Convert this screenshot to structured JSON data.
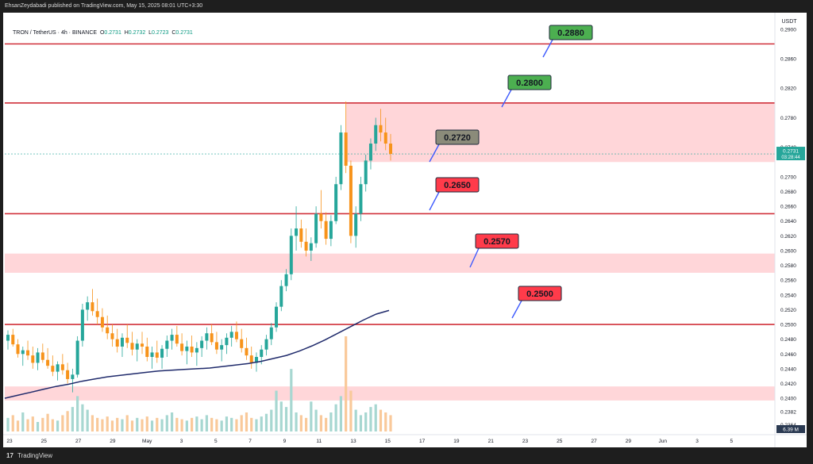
{
  "header": {
    "publisher_text": "EhsanZeydabadi published on TradingView.com, May 15, 2025 08:01 UTC+3:30"
  },
  "legend": {
    "symbol": "TRON / TetherUS · 4h · BINANCE",
    "open_label": "O",
    "open": "0.2731",
    "high_label": "H",
    "high": "0.2732",
    "low_label": "L",
    "low": "0.2723",
    "close_label": "C",
    "close": "0.2731"
  },
  "footer": {
    "brand": "TradingView",
    "logo": "17"
  },
  "colors": {
    "up": "#26a69a",
    "down": "#f7931a",
    "level": "#d0303a",
    "zone": "#ffd6d9",
    "ma": "#1f2a6b",
    "label_green": "#4caf50",
    "label_red": "#ff3b4a",
    "label_gray": "#8b8b7a",
    "price_tag": "#26a69a",
    "volume_tag": "#2b3a52"
  },
  "chart_data": {
    "type": "candlestick",
    "symbol": "TRON / TetherUS",
    "interval": "4h",
    "exchange": "BINANCE",
    "y_unit_label": "USDT",
    "ylim": [
      0.2355,
      0.2918
    ],
    "y_ticks": [
      "0.2900",
      "0.2860",
      "0.2820",
      "0.2780",
      "0.2740",
      "0.2700",
      "0.2680",
      "0.2660",
      "0.2640",
      "0.2620",
      "0.2600",
      "0.2580",
      "0.2560",
      "0.2540",
      "0.2520",
      "0.2500",
      "0.2480",
      "0.2460",
      "0.2440",
      "0.2420",
      "0.2400",
      "0.2382",
      "0.2364"
    ],
    "x_ticks": [
      "23",
      "25",
      "27",
      "29",
      "May",
      "3",
      "5",
      "7",
      "9",
      "11",
      "13",
      "15",
      "17",
      "19",
      "21",
      "23",
      "25",
      "27",
      "29",
      "Jun",
      "3",
      "5"
    ],
    "current_price": "0.2731",
    "countdown": "03:28:44",
    "volume_tag": "6.39 M",
    "levels": [
      {
        "price": 0.288,
        "label": "0.2880",
        "style": "green"
      },
      {
        "price": 0.28,
        "label": "0.2800",
        "style": "green"
      },
      {
        "price": 0.265,
        "label": "0.2650",
        "style": "red"
      },
      {
        "price": 0.25,
        "label": "0.2500",
        "style": "red"
      }
    ],
    "zones": [
      {
        "from": 0.272,
        "to": 0.28,
        "label": "0.2720",
        "style": "gray"
      },
      {
        "from": 0.257,
        "to": 0.2596,
        "label": "0.2570",
        "style": "red"
      },
      {
        "from": 0.2397,
        "to": 0.2416,
        "label": "",
        "style": "none"
      }
    ],
    "candles": [
      [
        0.2478,
        0.2492,
        0.2466,
        0.2486
      ],
      [
        0.2486,
        0.2494,
        0.247,
        0.2473
      ],
      [
        0.2473,
        0.248,
        0.2455,
        0.246
      ],
      [
        0.246,
        0.247,
        0.2444,
        0.2465
      ],
      [
        0.2465,
        0.2478,
        0.2452,
        0.2458
      ],
      [
        0.2458,
        0.247,
        0.244,
        0.2448
      ],
      [
        0.2448,
        0.2468,
        0.2438,
        0.2462
      ],
      [
        0.2462,
        0.2474,
        0.2448,
        0.2452
      ],
      [
        0.2452,
        0.2468,
        0.244,
        0.2444
      ],
      [
        0.2444,
        0.2458,
        0.243,
        0.2436
      ],
      [
        0.2436,
        0.245,
        0.2424,
        0.2446
      ],
      [
        0.2446,
        0.246,
        0.2432,
        0.2438
      ],
      [
        0.2438,
        0.2448,
        0.242,
        0.2426
      ],
      [
        0.2426,
        0.244,
        0.2408,
        0.2432
      ],
      [
        0.2432,
        0.2484,
        0.2428,
        0.2478
      ],
      [
        0.2478,
        0.2528,
        0.247,
        0.252
      ],
      [
        0.252,
        0.2538,
        0.2505,
        0.253
      ],
      [
        0.253,
        0.2548,
        0.2512,
        0.2518
      ],
      [
        0.2518,
        0.2535,
        0.25,
        0.251
      ],
      [
        0.251,
        0.2522,
        0.249,
        0.2496
      ],
      [
        0.2496,
        0.2512,
        0.248,
        0.2488
      ],
      [
        0.2488,
        0.25,
        0.247,
        0.248
      ],
      [
        0.248,
        0.2494,
        0.2462,
        0.247
      ],
      [
        0.247,
        0.2488,
        0.2456,
        0.2482
      ],
      [
        0.2482,
        0.25,
        0.2468,
        0.2475
      ],
      [
        0.2475,
        0.249,
        0.2458,
        0.2466
      ],
      [
        0.2466,
        0.248,
        0.245,
        0.2474
      ],
      [
        0.2474,
        0.249,
        0.246,
        0.247
      ],
      [
        0.247,
        0.2482,
        0.245,
        0.2456
      ],
      [
        0.2456,
        0.247,
        0.244,
        0.2462
      ],
      [
        0.2462,
        0.2478,
        0.2448,
        0.2455
      ],
      [
        0.2455,
        0.2472,
        0.244,
        0.2467
      ],
      [
        0.2467,
        0.2485,
        0.2456,
        0.2478
      ],
      [
        0.2478,
        0.2494,
        0.2466,
        0.2486
      ],
      [
        0.2486,
        0.2498,
        0.247,
        0.2474
      ],
      [
        0.2474,
        0.2488,
        0.2458,
        0.2464
      ],
      [
        0.2464,
        0.2478,
        0.2446,
        0.247
      ],
      [
        0.247,
        0.2485,
        0.2456,
        0.2462
      ],
      [
        0.2462,
        0.2476,
        0.2444,
        0.2468
      ],
      [
        0.2468,
        0.2484,
        0.2456,
        0.2478
      ],
      [
        0.2478,
        0.2496,
        0.2466,
        0.2488
      ],
      [
        0.2488,
        0.25,
        0.2472,
        0.2476
      ],
      [
        0.2476,
        0.249,
        0.246,
        0.2466
      ],
      [
        0.2466,
        0.248,
        0.245,
        0.2472
      ],
      [
        0.2472,
        0.2488,
        0.246,
        0.2482
      ],
      [
        0.2482,
        0.2498,
        0.247,
        0.249
      ],
      [
        0.249,
        0.2504,
        0.2476,
        0.248
      ],
      [
        0.248,
        0.2494,
        0.2462,
        0.2468
      ],
      [
        0.2468,
        0.2482,
        0.2452,
        0.2458
      ],
      [
        0.2458,
        0.247,
        0.244,
        0.2448
      ],
      [
        0.2448,
        0.2462,
        0.2436,
        0.2456
      ],
      [
        0.2456,
        0.2472,
        0.2446,
        0.2466
      ],
      [
        0.2466,
        0.2486,
        0.2458,
        0.248
      ],
      [
        0.248,
        0.2502,
        0.2472,
        0.2496
      ],
      [
        0.2496,
        0.253,
        0.249,
        0.2524
      ],
      [
        0.2524,
        0.256,
        0.2518,
        0.2552
      ],
      [
        0.2552,
        0.2575,
        0.2545,
        0.2568
      ],
      [
        0.2568,
        0.263,
        0.256,
        0.262
      ],
      [
        0.262,
        0.266,
        0.26,
        0.263
      ],
      [
        0.263,
        0.2642,
        0.2604,
        0.2612
      ],
      [
        0.2612,
        0.263,
        0.2592,
        0.26
      ],
      [
        0.26,
        0.2618,
        0.2586,
        0.261
      ],
      [
        0.261,
        0.266,
        0.2604,
        0.265
      ],
      [
        0.265,
        0.2682,
        0.263,
        0.264
      ],
      [
        0.264,
        0.2652,
        0.2608,
        0.2616
      ],
      [
        0.2616,
        0.2648,
        0.2606,
        0.264
      ],
      [
        0.264,
        0.27,
        0.2636,
        0.269
      ],
      [
        0.269,
        0.277,
        0.2682,
        0.276
      ],
      [
        0.276,
        0.2802,
        0.2705,
        0.2715
      ],
      [
        0.2715,
        0.2722,
        0.261,
        0.262
      ],
      [
        0.262,
        0.266,
        0.2604,
        0.265
      ],
      [
        0.265,
        0.27,
        0.264,
        0.269
      ],
      [
        0.269,
        0.273,
        0.268,
        0.2722
      ],
      [
        0.2722,
        0.2752,
        0.271,
        0.2745
      ],
      [
        0.2745,
        0.278,
        0.2735,
        0.277
      ],
      [
        0.277,
        0.2792,
        0.2748,
        0.276
      ],
      [
        0.276,
        0.278,
        0.2736,
        0.2745
      ],
      [
        0.2745,
        0.2758,
        0.2722,
        0.2731
      ]
    ],
    "volumes": [
      10,
      12,
      8,
      14,
      9,
      11,
      7,
      10,
      13,
      9,
      8,
      12,
      15,
      18,
      26,
      20,
      16,
      12,
      10,
      9,
      11,
      8,
      10,
      9,
      12,
      8,
      10,
      9,
      11,
      8,
      10,
      9,
      12,
      14,
      10,
      9,
      8,
      10,
      11,
      9,
      12,
      10,
      9,
      8,
      11,
      10,
      9,
      12,
      14,
      10,
      9,
      11,
      13,
      16,
      30,
      22,
      18,
      46,
      14,
      12,
      10,
      22,
      16,
      12,
      10,
      14,
      20,
      26,
      70,
      30,
      16,
      12,
      14,
      18,
      20,
      16,
      14,
      12
    ],
    "ma_series": [
      0.24,
      0.2404,
      0.2408,
      0.2412,
      0.2416,
      0.2419,
      0.2423,
      0.2426,
      0.2429,
      0.2431,
      0.2433,
      0.2435,
      0.2437,
      0.2438,
      0.2439,
      0.244,
      0.2441,
      0.2443,
      0.2445,
      0.2447,
      0.245,
      0.2454,
      0.2458,
      0.2464,
      0.2471,
      0.2479,
      0.2488,
      0.2497,
      0.2506,
      0.2514,
      0.2519
    ]
  }
}
